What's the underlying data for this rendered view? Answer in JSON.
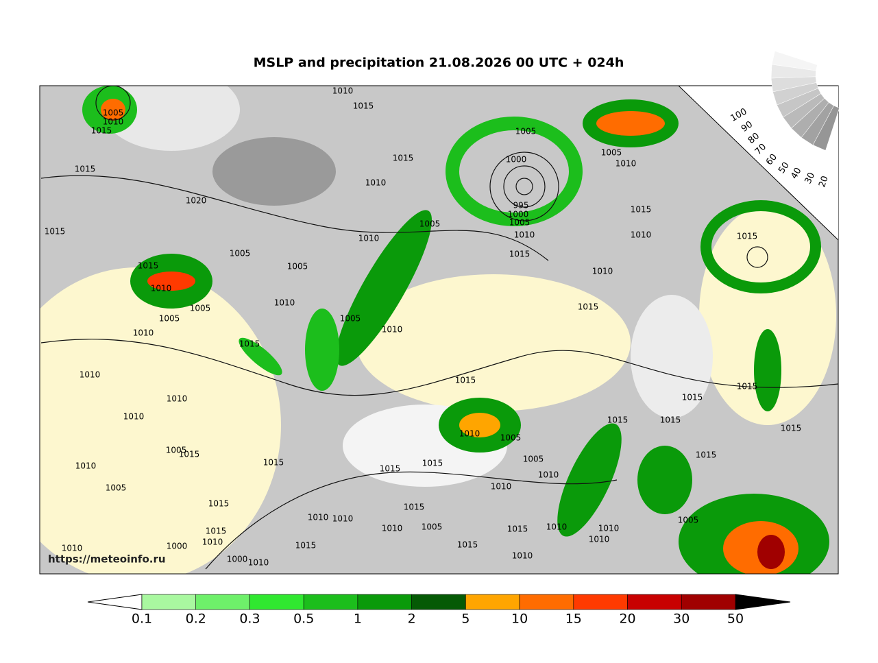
{
  "title": "MSLP and precipitation 21.08.2026 00 UTC + 024h",
  "watermark": "https://meteoinfo.ru",
  "isobar_labels": [
    1005,
    1010,
    1015,
    1010,
    1015,
    1015,
    1010,
    1005,
    1000,
    1005,
    1010,
    1015,
    1020,
    995,
    1000,
    1005,
    1010,
    1015,
    1010,
    1015,
    1005,
    1010,
    1015,
    1005,
    1015,
    1015,
    1005,
    1010,
    1010,
    1010,
    1005,
    1015,
    1005,
    1005,
    1010,
    1010,
    1015,
    1015,
    1010,
    1010,
    1015,
    1015,
    1010,
    1015,
    1015,
    1015,
    1010,
    1005,
    1005,
    1015,
    1015,
    1005,
    1015,
    1015,
    1010,
    1015,
    1010,
    1005,
    1010,
    1015,
    1015,
    1010,
    1010,
    1005,
    1010,
    1005,
    1015,
    1010,
    1010,
    1015,
    1010,
    1010,
    1015,
    1015,
    1000,
    1010,
    1010,
    1000,
    1010
  ],
  "colorbar": {
    "ticks": [
      0.1,
      0.2,
      0.3,
      0.5,
      1,
      2,
      5,
      10,
      15,
      20,
      30,
      50
    ],
    "colors": [
      "#a9f8a0",
      "#6ef06a",
      "#30e830",
      "#1cbe1c",
      "#0a9a0a",
      "#055a05",
      "#ffa500",
      "#ff6c00",
      "#ff3a00",
      "#c80000",
      "#a00000"
    ]
  },
  "cloud_scale": [
    100,
    90,
    80,
    70,
    60,
    50,
    40,
    30,
    20
  ]
}
